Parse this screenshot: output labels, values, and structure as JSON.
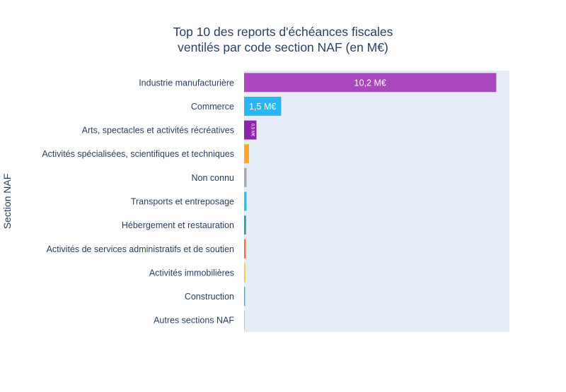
{
  "chart_data": {
    "type": "bar",
    "orientation": "horizontal",
    "title_line1": "Top 10 des reports d'échéances fiscales",
    "title_line2": "ventilés par code section NAF (en M€)",
    "ylabel": "Section NAF",
    "xlabel": "",
    "grid": false,
    "categories": [
      "Industrie manufacturière",
      "Commerce",
      "Arts, spectacles et activités récréatives",
      "Activités spécialisées, scientifiques et techniques",
      "Non connu",
      "Transports et entreposage",
      "Hébergement et restauration",
      "Activités de services administratifs et de soutien",
      "Activités immobilières",
      "Construction",
      "Autres sections NAF"
    ],
    "values": [
      10.2,
      1.5,
      0.5,
      0.2,
      0.1,
      0.1,
      0.08,
      0.07,
      0.05,
      0.04,
      0.02
    ],
    "data_labels": [
      "10,2 M€",
      "1,5 M€",
      "0,5 M€",
      "",
      "",
      "",
      "",
      "",
      "",
      "",
      ""
    ],
    "colors": [
      "#AB47BC",
      "#29B6F6",
      "#8E24AA",
      "#FFA726",
      "#A8A8A8",
      "#26C6DA",
      "#26A69A",
      "#FF7043",
      "#FFCA28",
      "#42A5F5",
      "#BDBDBD"
    ],
    "xlim": [
      0,
      10.73
    ],
    "plot_bg": "#E5ECF6",
    "text_color": "#2A3F5F"
  }
}
